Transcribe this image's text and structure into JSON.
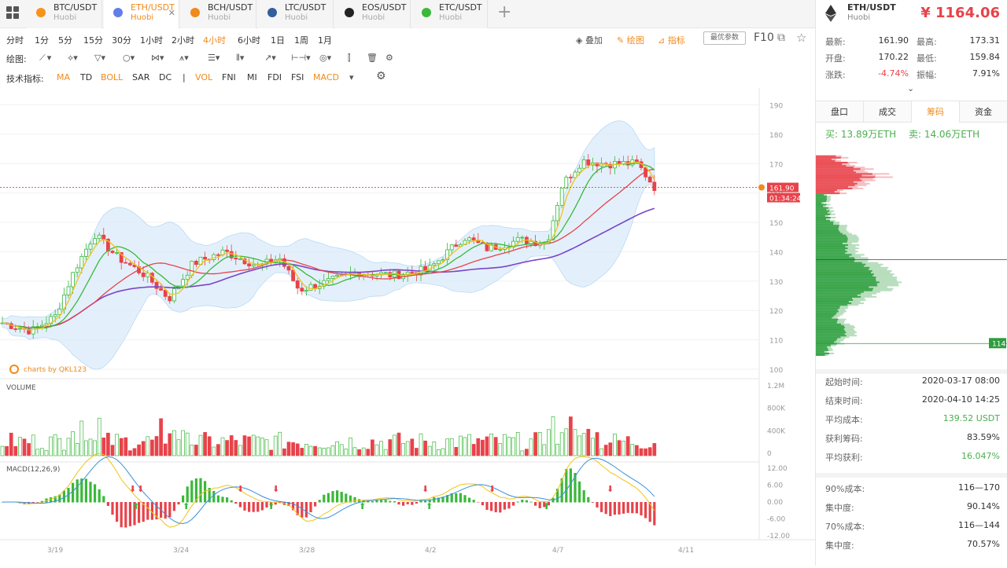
{
  "tabs": [
    {
      "name": "BTC/USDT",
      "exchange": "Huobi",
      "color": "#f7931a",
      "close": ""
    },
    {
      "name": "ETH/USDT",
      "exchange": "Huobi",
      "color": "#627eea",
      "close": "✕"
    },
    {
      "name": "BCH/USDT",
      "exchange": "Huobi",
      "color": "#f08a1c",
      "close": ""
    },
    {
      "name": "LTC/USDT",
      "exchange": "Huobi",
      "color": "#345d9d",
      "close": ""
    },
    {
      "name": "EOS/USDT",
      "exchange": "Huobi",
      "color": "#222222",
      "close": ""
    },
    {
      "name": "ETC/USDT",
      "exchange": "Huobi",
      "color": "#3ab83a",
      "close": ""
    }
  ],
  "toolbar": {
    "timeframes": [
      "分时",
      "1分",
      "5分",
      "15分",
      "30分",
      "1小时",
      "2小时",
      "4小时",
      "6小时",
      "1日",
      "1周",
      "1月"
    ],
    "active_timeframe": "4小时",
    "overlay": "叠加",
    "draw": "绘图",
    "indicators": "指标",
    "preferences": "最优参数",
    "f10": "F10"
  },
  "drawing": {
    "label": "绘图:"
  },
  "tech": {
    "label": "技术指标:",
    "items": [
      "MA",
      "TD",
      "BOLL",
      "SAR",
      "DC",
      "|",
      "VOL",
      "FNI",
      "MI",
      "FDI",
      "FSI",
      "MACD"
    ],
    "active": [
      "MA",
      "BOLL",
      "VOL",
      "MACD"
    ]
  },
  "chart_data": {
    "type": "candlestick",
    "y_ticks": [
      "190",
      "180",
      "170",
      "160",
      "150",
      "140",
      "130",
      "120",
      "110",
      "100"
    ],
    "ylim": [
      100,
      192
    ],
    "volume_label": "VOLUME",
    "volume_ticks": [
      "1.2M",
      "800K",
      "400K",
      "0"
    ],
    "macd_label": "MACD(12,26,9)",
    "macd_ticks": [
      "12.00",
      "6.00",
      "0.00",
      "-6.00",
      "-12.00"
    ],
    "x_labels": [
      "3/19",
      "3/24",
      "3/28",
      "4/2",
      "4/7",
      "4/11"
    ],
    "last_price": "161.90",
    "countdown": "01:34:24",
    "watermark": "charts by QKL123"
  },
  "right": {
    "pair": "ETH/USDT",
    "exchange": "Huobi",
    "price": "¥ 1164.06",
    "stats": [
      {
        "l1": "最新:",
        "v1": "161.90",
        "l2": "最高:",
        "v2": "173.31",
        "c1": "#333"
      },
      {
        "l1": "开盘:",
        "v1": "170.22",
        "l2": "最低:",
        "v2": "159.84",
        "c1": "#333"
      },
      {
        "l1": "涨跌:",
        "v1": "-4.74%",
        "l2": "振幅:",
        "v2": "7.91%",
        "c1": "#e8424a"
      }
    ],
    "tabs": [
      "盘口",
      "成交",
      "筹码",
      "资金"
    ],
    "active_tab": "筹码",
    "buy": "买: 13.89万ETH",
    "sell": "卖: 14.06万ETH",
    "chip_marker": "114",
    "info": [
      {
        "label": "起始时间:",
        "value": "2020-03-17 08:00",
        "color": "#333"
      },
      {
        "label": "结束时间:",
        "value": "2020-04-10 14:25",
        "color": "#333"
      },
      {
        "label": "平均成本:",
        "value": "139.52 USDT",
        "color": "#4caf50"
      },
      {
        "label": "获利筹码:",
        "value": "83.59%",
        "color": "#333"
      },
      {
        "label": "平均获利:",
        "value": "16.047%",
        "color": "#4caf50"
      }
    ],
    "cost": [
      {
        "label": "90%成本:",
        "value": "116—170"
      },
      {
        "label": "集中度:",
        "value": "90.14%"
      },
      {
        "label": "70%成本:",
        "value": "116—144"
      },
      {
        "label": "集中度:",
        "value": "70.57%"
      }
    ]
  }
}
